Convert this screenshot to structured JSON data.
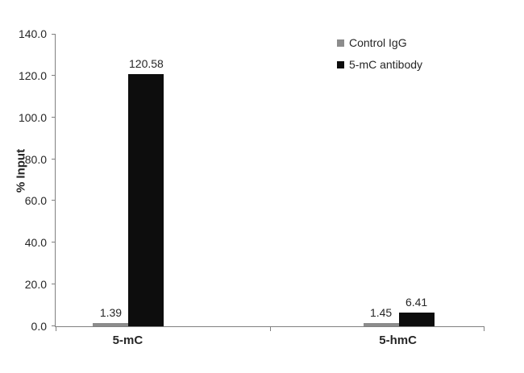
{
  "chart_data": {
    "type": "bar",
    "title": "",
    "xlabel": "",
    "ylabel": "% Input",
    "ylim": [
      0,
      140
    ],
    "ytick_step": 20,
    "ytick_labels": [
      "0.0",
      "20.0",
      "40.0",
      "60.0",
      "80.0",
      "100.0",
      "120.0",
      "140.0"
    ],
    "categories": [
      "5-mC",
      "5-hmC"
    ],
    "series": [
      {
        "name": "Control IgG",
        "color": "#8c8c8c",
        "values": [
          1.39,
          1.45
        ]
      },
      {
        "name": "5-mC antibody",
        "color": "#0d0d0d",
        "values": [
          120.58,
          6.41
        ]
      }
    ],
    "value_labels": [
      [
        "1.39",
        "120.58"
      ],
      [
        "1.45",
        "6.41"
      ]
    ],
    "legend_position": "top-right",
    "grid": false
  },
  "colors": {
    "axis": "#808080",
    "text": "#262626",
    "background": "#ffffff"
  }
}
